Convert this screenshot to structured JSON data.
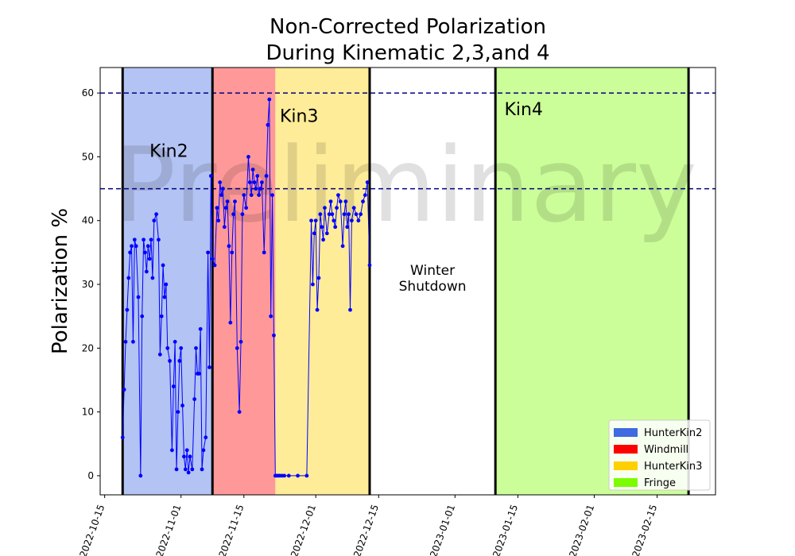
{
  "chart_data": {
    "type": "line",
    "title_line1": "Non-Corrected Polarization",
    "title_line2": "During Kinematic 2,3,and 4",
    "xlabel": "",
    "ylabel": "Polarization %",
    "xlim": [
      "2022-10-14",
      "2023-02-28"
    ],
    "ylim": [
      -3,
      64
    ],
    "grid": false,
    "watermark": "Preliminary",
    "x_ticks": [
      "2022-10-15",
      "2022-11-01",
      "2022-11-15",
      "2022-12-01",
      "2022-12-15",
      "2023-01-01",
      "2023-01-15",
      "2023-02-01",
      "2023-02-15"
    ],
    "y_ticks": [
      0,
      10,
      20,
      30,
      40,
      50,
      60
    ],
    "hlines": [
      {
        "y": 60,
        "color": "#00007f",
        "style": "dashed"
      },
      {
        "y": 45,
        "color": "#00007f",
        "style": "dashed"
      }
    ],
    "vlines": [
      {
        "x": "2022-10-19",
        "color": "#000000"
      },
      {
        "x": "2022-11-08",
        "color": "#000000"
      },
      {
        "x": "2022-12-13",
        "color": "#000000"
      },
      {
        "x": "2023-01-10",
        "color": "#000000"
      },
      {
        "x": "2023-02-22",
        "color": "#000000"
      }
    ],
    "regions": [
      {
        "name": "HunterKin2",
        "start": "2022-10-19",
        "end": "2022-11-08",
        "color": "#4169e1",
        "opacity": 0.4
      },
      {
        "name": "Windmill",
        "start": "2022-11-08",
        "end": "2022-11-22",
        "color": "#ff0000",
        "opacity": 0.4
      },
      {
        "name": "HunterKin3",
        "start": "2022-11-22",
        "end": "2022-12-13",
        "color": "#ffd000",
        "opacity": 0.4
      },
      {
        "name": "Fringe",
        "start": "2023-01-10",
        "end": "2023-02-22",
        "color": "#7cfc00",
        "opacity": 0.4
      }
    ],
    "region_labels": [
      {
        "text": "Kin2",
        "x": "2022-10-25",
        "y": 50
      },
      {
        "text": "Kin3",
        "x": "2022-11-23",
        "y": 55.5
      },
      {
        "text": "Kin4",
        "x": "2023-01-12",
        "y": 56.5
      }
    ],
    "annotation": {
      "lines": [
        "Winter",
        "Shutdown"
      ],
      "x": "2022-12-27",
      "y": 31.5
    },
    "legend": {
      "position": "lower right",
      "entries": [
        {
          "label": "HunterKin2",
          "color": "#4169e1"
        },
        {
          "label": "Windmill",
          "color": "#ff0000"
        },
        {
          "label": "HunterKin3",
          "color": "#ffd000"
        },
        {
          "label": "Fringe",
          "color": "#7cfc00"
        }
      ]
    },
    "series_color": "#0000ff",
    "series": [
      {
        "x": [
          "2022-10-19",
          "2022-10-19",
          "2022-10-19",
          "2022-10-20",
          "2022-10-20",
          "2022-10-20",
          "2022-10-21",
          "2022-10-21",
          "2022-10-21",
          "2022-10-22",
          "2022-10-22",
          "2022-10-23",
          "2022-10-23",
          "2022-10-23",
          "2022-10-24",
          "2022-10-24",
          "2022-10-24",
          "2022-10-25",
          "2022-10-25",
          "2022-10-25",
          "2022-10-26",
          "2022-10-26",
          "2022-10-27",
          "2022-10-27",
          "2022-10-27",
          "2022-10-28",
          "2022-10-28",
          "2022-10-28",
          "2022-10-29",
          "2022-10-29",
          "2022-10-30",
          "2022-10-30",
          "2022-10-30",
          "2022-10-31",
          "2022-10-31",
          "2022-10-31",
          "2022-11-01",
          "2022-11-01",
          "2022-11-01",
          "2022-11-02",
          "2022-11-02",
          "2022-11-02",
          "2022-11-03",
          "2022-11-03",
          "2022-11-04",
          "2022-11-04",
          "2022-11-04",
          "2022-11-05",
          "2022-11-05",
          "2022-11-05",
          "2022-11-06",
          "2022-11-06",
          "2022-11-07",
          "2022-11-07",
          "2022-11-07",
          "2022-11-08",
          "2022-11-08",
          "2022-11-09",
          "2022-11-09",
          "2022-11-09",
          "2022-11-10",
          "2022-11-10",
          "2022-11-10",
          "2022-11-11",
          "2022-11-11",
          "2022-11-11",
          "2022-11-12",
          "2022-11-12",
          "2022-11-12",
          "2022-11-13",
          "2022-11-13",
          "2022-11-14",
          "2022-11-14",
          "2022-11-14",
          "2022-11-15",
          "2022-11-15",
          "2022-11-16",
          "2022-11-16",
          "2022-11-16",
          "2022-11-17",
          "2022-11-17",
          "2022-11-17",
          "2022-11-18",
          "2022-11-18",
          "2022-11-18",
          "2022-11-19",
          "2022-11-19",
          "2022-11-20",
          "2022-11-20",
          "2022-11-20",
          "2022-11-21",
          "2022-11-21",
          "2022-11-21",
          "2022-11-22",
          "2022-11-22",
          "2022-11-22",
          "2022-11-23",
          "2022-11-23",
          "2022-11-24",
          "2022-11-25",
          "2022-11-27",
          "2022-11-29",
          "2022-11-30",
          "2022-11-30",
          "2022-11-30",
          "2022-12-01",
          "2022-12-01",
          "2022-12-01",
          "2022-12-02",
          "2022-12-02",
          "2022-12-02",
          "2022-12-03",
          "2022-12-03",
          "2022-12-04",
          "2022-12-04",
          "2022-12-04",
          "2022-12-05",
          "2022-12-05",
          "2022-12-05",
          "2022-12-06",
          "2022-12-06",
          "2022-12-07",
          "2022-12-07",
          "2022-12-07",
          "2022-12-08",
          "2022-12-08",
          "2022-12-08",
          "2022-12-09",
          "2022-12-09",
          "2022-12-10",
          "2022-12-10",
          "2022-12-11",
          "2022-12-11",
          "2022-12-12",
          "2022-12-12",
          "2022-12-13"
        ],
        "y": [
          6,
          13.5,
          21,
          26,
          31,
          35,
          36,
          21,
          37,
          36,
          28,
          0,
          25,
          37,
          35,
          32,
          36,
          34,
          37,
          31,
          40,
          41,
          37,
          19,
          25,
          33,
          28,
          30,
          20,
          18,
          4,
          14,
          21,
          1,
          10,
          18,
          20,
          11,
          3,
          1,
          4,
          0.5,
          3,
          1,
          12,
          20,
          16,
          16,
          23,
          1,
          4,
          6,
          35,
          17,
          47,
          34,
          33,
          42,
          40,
          46,
          44,
          45,
          39,
          42,
          43,
          36,
          24,
          35,
          41,
          43,
          20,
          10,
          21,
          41,
          44,
          42,
          50,
          46,
          44,
          48,
          46,
          45,
          47,
          44,
          45,
          46,
          35,
          47,
          55,
          59,
          25,
          44,
          22,
          0,
          0,
          0,
          0,
          0,
          0,
          0,
          0,
          0,
          40,
          30,
          38,
          40,
          26,
          31,
          41,
          39,
          37,
          42,
          38,
          41,
          43,
          41,
          40,
          39,
          42,
          44,
          43,
          36,
          41,
          43,
          39,
          41,
          26,
          40,
          42,
          41,
          40,
          41,
          43,
          44,
          46,
          33
        ],
        "y_note": "values read off the plot"
      }
    ]
  }
}
